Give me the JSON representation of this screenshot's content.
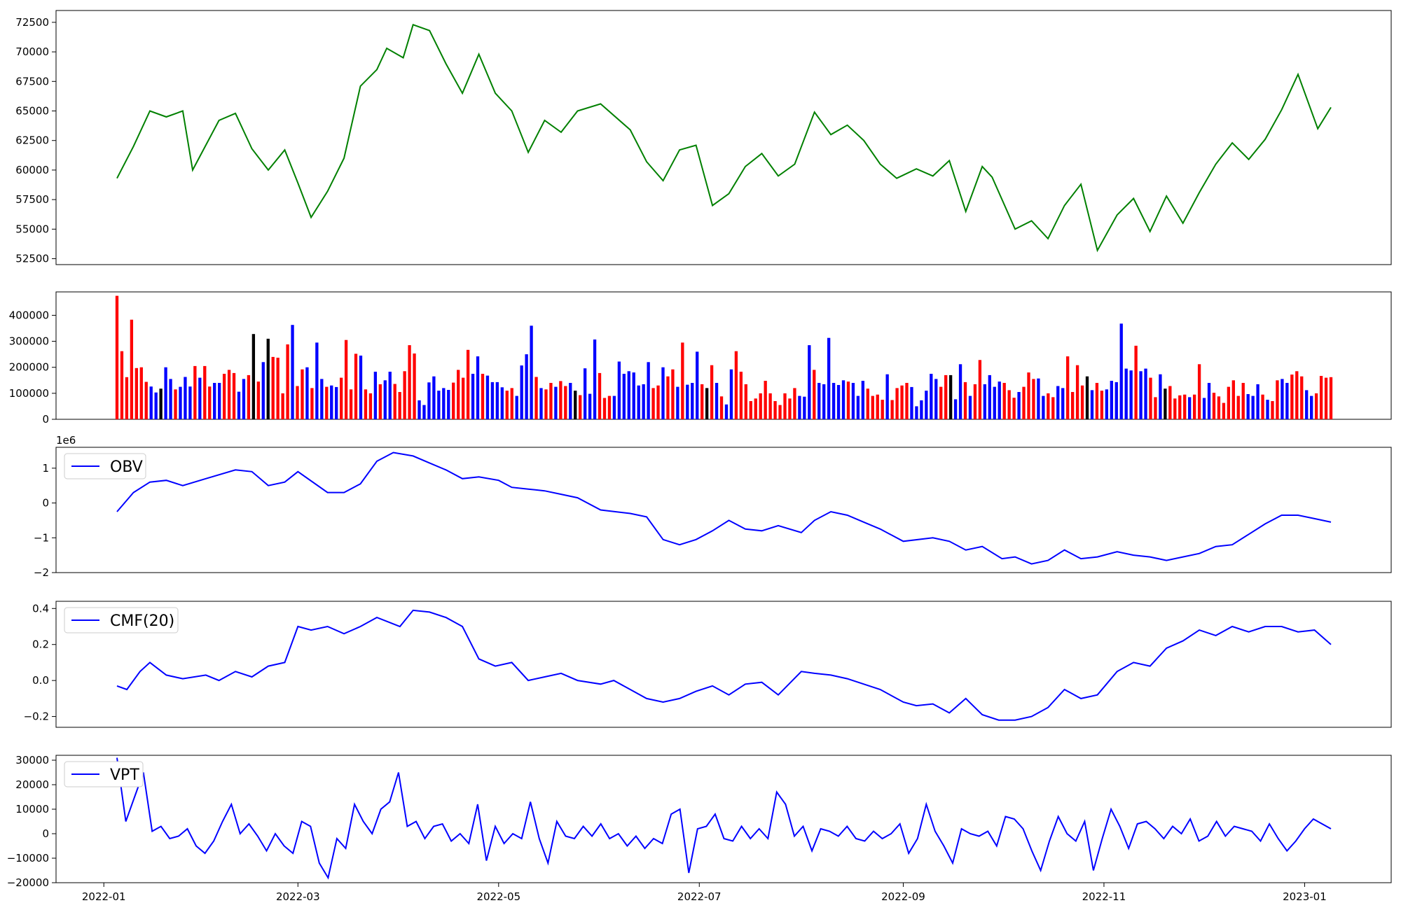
{
  "figure": {
    "background": "#ffffff",
    "x_axis": {
      "ticks": [
        "2022-01",
        "2022-03",
        "2022-05",
        "2022-07",
        "2022-09",
        "2022-11",
        "2023-01"
      ]
    }
  },
  "chart_data": [
    {
      "id": "price",
      "type": "line",
      "color": "#008000",
      "ylim": [
        52000,
        73500
      ],
      "yticks": [
        52500,
        55000,
        57500,
        60000,
        62500,
        65000,
        67500,
        70000,
        72500
      ],
      "x": [
        "2022-01-05",
        "2022-01-10",
        "2022-01-15",
        "2022-01-20",
        "2022-01-25",
        "2022-01-28",
        "2022-02-05",
        "2022-02-10",
        "2022-02-15",
        "2022-02-20",
        "2022-02-25",
        "2022-03-01",
        "2022-03-05",
        "2022-03-10",
        "2022-03-15",
        "2022-03-20",
        "2022-03-25",
        "2022-03-28",
        "2022-04-02",
        "2022-04-05",
        "2022-04-10",
        "2022-04-15",
        "2022-04-20",
        "2022-04-25",
        "2022-04-30",
        "2022-05-05",
        "2022-05-10",
        "2022-05-15",
        "2022-05-20",
        "2022-05-25",
        "2022-06-01",
        "2022-06-10",
        "2022-06-15",
        "2022-06-20",
        "2022-06-25",
        "2022-06-30",
        "2022-07-05",
        "2022-07-10",
        "2022-07-15",
        "2022-07-20",
        "2022-07-25",
        "2022-07-30",
        "2022-08-05",
        "2022-08-10",
        "2022-08-15",
        "2022-08-20",
        "2022-08-25",
        "2022-08-30",
        "2022-09-05",
        "2022-09-10",
        "2022-09-15",
        "2022-09-20",
        "2022-09-25",
        "2022-09-28",
        "2022-10-05",
        "2022-10-10",
        "2022-10-15",
        "2022-10-20",
        "2022-10-25",
        "2022-10-30",
        "2022-11-05",
        "2022-11-10",
        "2022-11-15",
        "2022-11-20",
        "2022-11-25",
        "2022-11-30",
        "2022-12-05",
        "2022-12-10",
        "2022-12-15",
        "2022-12-20",
        "2022-12-25",
        "2022-12-30",
        "2023-01-05",
        "2023-01-09"
      ],
      "values": [
        59300,
        62000,
        65000,
        64500,
        65000,
        60000,
        64200,
        64800,
        61800,
        60000,
        61700,
        58900,
        56000,
        58200,
        61000,
        67100,
        68500,
        70300,
        69500,
        72300,
        71800,
        69000,
        66500,
        69800,
        66500,
        65000,
        61500,
        64200,
        63200,
        65000,
        65600,
        63400,
        60700,
        59100,
        61700,
        62100,
        57000,
        58000,
        60300,
        61400,
        59500,
        60500,
        64900,
        63000,
        63800,
        62500,
        60500,
        59300,
        60100,
        59500,
        60800,
        56500,
        60300,
        59400,
        55000,
        55700,
        54200,
        57000,
        58800,
        53200,
        56200,
        57600,
        54800,
        57800,
        55500,
        58100,
        60500,
        62300,
        60900,
        62600,
        65100,
        68100,
        63500,
        65300
      ]
    },
    {
      "id": "volume",
      "type": "bar",
      "colors": {
        "up": "#ff0000",
        "down": "#0000ff",
        "flat": "#000000"
      },
      "ylim": [
        0,
        490000
      ],
      "yticks": [
        0,
        100000,
        200000,
        300000,
        400000
      ],
      "values": [
        475000,
        262000,
        162000,
        383000,
        197000,
        200000,
        144000,
        126000,
        103000,
        118000,
        200000,
        155000,
        115000,
        125000,
        163000,
        126000,
        205000,
        160000,
        205000,
        126000,
        140000,
        140000,
        175000,
        190000,
        178000,
        106000,
        155000,
        170000,
        328000,
        145000,
        220000,
        310000,
        240000,
        237000,
        100000,
        288000,
        363000,
        128000,
        192000,
        200000,
        120000,
        295000,
        155000,
        125000,
        130000,
        124000,
        160000,
        305000,
        115000,
        252000,
        245000,
        115000,
        100000,
        183000,
        135000,
        150000,
        183000,
        136000,
        105000,
        185000,
        285000,
        253000,
        73000,
        55000,
        142000,
        165000,
        110000,
        120000,
        113000,
        141000,
        190000,
        160000,
        267000,
        175000,
        242000,
        175000,
        168000,
        143000,
        143000,
        123000,
        110000,
        120000,
        90000,
        207000,
        250000,
        360000,
        163000,
        120000,
        115000,
        140000,
        125000,
        147000,
        128000,
        140000,
        110000,
        93000,
        196000,
        98000,
        307000,
        178000,
        82000,
        90000,
        90000,
        222000,
        175000,
        185000,
        180000,
        130000,
        135000,
        220000,
        120000,
        130000,
        200000,
        165000,
        192000,
        125000,
        295000,
        133000,
        140000,
        260000,
        135000,
        120000,
        208000,
        140000,
        88000,
        57000,
        192000,
        262000,
        183000,
        135000,
        70000,
        80000,
        100000,
        148000,
        100000,
        70000,
        55000,
        100000,
        80000,
        120000,
        90000,
        87000,
        285000,
        190000,
        140000,
        135000,
        313000,
        140000,
        132000,
        150000,
        145000,
        140000,
        90000,
        148000,
        118000,
        90000,
        95000,
        75000,
        173000,
        74000,
        120000,
        130000,
        140000,
        124000,
        50000,
        73000,
        110000,
        175000,
        155000,
        125000,
        170000,
        170000,
        77000,
        212000,
        143000,
        90000,
        135000,
        228000,
        135000,
        170000,
        125000,
        145000,
        140000,
        112000,
        83000,
        105000,
        125000,
        180000,
        155000,
        157000,
        90000,
        100000,
        85000,
        128000,
        120000,
        242000,
        105000,
        208000,
        130000,
        165000,
        112000,
        140000,
        110000,
        115000,
        148000,
        143000,
        368000,
        195000,
        188000,
        283000,
        185000,
        195000,
        160000,
        85000,
        173000,
        118000,
        128000,
        80000,
        92000,
        95000,
        85000,
        95000,
        212000,
        82000,
        140000,
        102000,
        88000,
        63000,
        125000,
        150000,
        90000,
        140000,
        97000,
        90000,
        135000,
        95000,
        75000,
        70000,
        150000,
        155000,
        140000,
        172000,
        185000,
        165000,
        112000,
        90000,
        100000,
        167000,
        160000,
        162000
      ],
      "bar_colors": "rrrrrrrbbfbbrbbbrbrrbbrrrbbrfrbfrrrrbrrbrbbrbbrrrrbrrbrbbrrrrrbbbbbbbrrrrbbrbbbbrrbbbbrbrrbrrbfrbbbrrrbbbbbbbbrrbrrbrbbbrfrbrbbrrrrrrrrrrrrrbbbrbbbbbbrbbbrrrrbrrrrbbbbbbrrfbbrbrrbbbbrrrbrrrbbrrbbrrrrfbrrbbbbbbrbbrrbfrrrrbrrbbrrrrrrrbbbrbrrbbrrrbbrrrrb"
    },
    {
      "id": "obv",
      "type": "line",
      "series": [
        {
          "name": "OBV",
          "color": "#0000ff"
        }
      ],
      "ylim": [
        -2.0,
        1.6
      ],
      "yticks": [
        -2,
        -1,
        0,
        1
      ],
      "ytick_labels": [
        "−2",
        "−1",
        "0",
        "1"
      ],
      "scale_note": "1e6",
      "x": [
        "2022-01-05",
        "2022-01-10",
        "2022-01-15",
        "2022-01-20",
        "2022-01-25",
        "2022-02-01",
        "2022-02-10",
        "2022-02-15",
        "2022-02-20",
        "2022-02-25",
        "2022-03-01",
        "2022-03-10",
        "2022-03-15",
        "2022-03-20",
        "2022-03-25",
        "2022-03-30",
        "2022-04-05",
        "2022-04-10",
        "2022-04-15",
        "2022-04-20",
        "2022-04-25",
        "2022-05-01",
        "2022-05-05",
        "2022-05-10",
        "2022-05-15",
        "2022-05-20",
        "2022-05-25",
        "2022-06-01",
        "2022-06-10",
        "2022-06-15",
        "2022-06-20",
        "2022-06-25",
        "2022-06-30",
        "2022-07-05",
        "2022-07-10",
        "2022-07-15",
        "2022-07-20",
        "2022-07-25",
        "2022-08-01",
        "2022-08-05",
        "2022-08-10",
        "2022-08-15",
        "2022-08-20",
        "2022-08-25",
        "2022-09-01",
        "2022-09-10",
        "2022-09-15",
        "2022-09-20",
        "2022-09-25",
        "2022-10-01",
        "2022-10-05",
        "2022-10-10",
        "2022-10-15",
        "2022-10-20",
        "2022-10-25",
        "2022-10-30",
        "2022-11-05",
        "2022-11-10",
        "2022-11-15",
        "2022-11-20",
        "2022-11-25",
        "2022-11-30",
        "2022-12-05",
        "2022-12-10",
        "2022-12-15",
        "2022-12-20",
        "2022-12-25",
        "2022-12-30",
        "2023-01-04",
        "2023-01-09"
      ],
      "values": [
        -0.25,
        0.3,
        0.6,
        0.65,
        0.5,
        0.7,
        0.95,
        0.9,
        0.5,
        0.6,
        0.9,
        0.3,
        0.3,
        0.55,
        1.2,
        1.45,
        1.35,
        1.15,
        0.95,
        0.7,
        0.75,
        0.65,
        0.45,
        0.4,
        0.35,
        0.25,
        0.15,
        -0.2,
        -0.3,
        -0.4,
        -1.05,
        -1.2,
        -1.05,
        -0.8,
        -0.5,
        -0.75,
        -0.8,
        -0.65,
        -0.85,
        -0.5,
        -0.25,
        -0.35,
        -0.55,
        -0.75,
        -1.1,
        -1.0,
        -1.1,
        -1.35,
        -1.25,
        -1.6,
        -1.55,
        -1.75,
        -1.65,
        -1.35,
        -1.6,
        -1.55,
        -1.4,
        -1.5,
        -1.55,
        -1.65,
        -1.55,
        -1.45,
        -1.25,
        -1.2,
        -0.9,
        -0.6,
        -0.35,
        -0.35,
        -0.45,
        -0.55
      ]
    },
    {
      "id": "cmf",
      "type": "line",
      "series": [
        {
          "name": "CMF(20)",
          "color": "#0000ff"
        }
      ],
      "ylim": [
        -0.26,
        0.44
      ],
      "yticks": [
        -0.2,
        0.0,
        0.2,
        0.4
      ],
      "ytick_labels": [
        "−0.2",
        "0.0",
        "0.2",
        "0.4"
      ],
      "x": [
        "2022-01-05",
        "2022-01-08",
        "2022-01-12",
        "2022-01-15",
        "2022-01-20",
        "2022-01-25",
        "2022-02-01",
        "2022-02-05",
        "2022-02-10",
        "2022-02-15",
        "2022-02-20",
        "2022-02-25",
        "2022-03-01",
        "2022-03-05",
        "2022-03-10",
        "2022-03-15",
        "2022-03-20",
        "2022-03-25",
        "2022-04-01",
        "2022-04-05",
        "2022-04-10",
        "2022-04-15",
        "2022-04-20",
        "2022-04-25",
        "2022-04-30",
        "2022-05-05",
        "2022-05-10",
        "2022-05-15",
        "2022-05-20",
        "2022-05-25",
        "2022-06-01",
        "2022-06-05",
        "2022-06-10",
        "2022-06-15",
        "2022-06-20",
        "2022-06-25",
        "2022-06-30",
        "2022-07-05",
        "2022-07-10",
        "2022-07-15",
        "2022-07-20",
        "2022-07-25",
        "2022-08-01",
        "2022-08-05",
        "2022-08-10",
        "2022-08-15",
        "2022-08-20",
        "2022-08-25",
        "2022-09-01",
        "2022-09-05",
        "2022-09-10",
        "2022-09-15",
        "2022-09-20",
        "2022-09-25",
        "2022-09-30",
        "2022-10-05",
        "2022-10-10",
        "2022-10-15",
        "2022-10-20",
        "2022-10-25",
        "2022-10-30",
        "2022-11-05",
        "2022-11-10",
        "2022-11-15",
        "2022-11-20",
        "2022-11-25",
        "2022-11-30",
        "2022-12-05",
        "2022-12-10",
        "2022-12-15",
        "2022-12-20",
        "2022-12-25",
        "2022-12-30",
        "2023-01-04",
        "2023-01-09"
      ],
      "values": [
        -0.03,
        -0.05,
        0.05,
        0.1,
        0.03,
        0.01,
        0.03,
        0.0,
        0.05,
        0.02,
        0.08,
        0.1,
        0.3,
        0.28,
        0.3,
        0.26,
        0.3,
        0.35,
        0.3,
        0.39,
        0.38,
        0.35,
        0.3,
        0.12,
        0.08,
        0.1,
        0.0,
        0.02,
        0.04,
        0.0,
        -0.02,
        0.0,
        -0.05,
        -0.1,
        -0.12,
        -0.1,
        -0.06,
        -0.03,
        -0.08,
        -0.02,
        -0.01,
        -0.08,
        0.05,
        0.04,
        0.03,
        0.01,
        -0.02,
        -0.05,
        -0.12,
        -0.14,
        -0.13,
        -0.18,
        -0.1,
        -0.19,
        -0.22,
        -0.22,
        -0.2,
        -0.15,
        -0.05,
        -0.1,
        -0.08,
        0.05,
        0.1,
        0.08,
        0.18,
        0.22,
        0.28,
        0.25,
        0.3,
        0.27,
        0.3,
        0.3,
        0.27,
        0.28,
        0.2
      ]
    },
    {
      "id": "vpt",
      "type": "line",
      "series": [
        {
          "name": "VPT",
          "color": "#0000ff"
        }
      ],
      "ylim": [
        -20000,
        32000
      ],
      "yticks": [
        -20000,
        -10000,
        0,
        10000,
        20000,
        30000
      ],
      "ytick_labels": [
        "−20000",
        "−10000",
        "0",
        "10000",
        "20000",
        "30000"
      ],
      "values": [
        31000,
        5000,
        15000,
        25000,
        1000,
        3000,
        -2000,
        -1000,
        2000,
        -5000,
        -8000,
        -3000,
        5000,
        12000,
        0,
        4000,
        -1000,
        -7000,
        0,
        -5000,
        -8000,
        5000,
        3000,
        -12000,
        -18000,
        -2000,
        -6000,
        12000,
        5000,
        0,
        10000,
        13000,
        25000,
        3000,
        5000,
        -2000,
        3000,
        4000,
        -3000,
        0,
        -4000,
        12000,
        -11000,
        3000,
        -4000,
        0,
        -2000,
        13000,
        -2000,
        -12000,
        5000,
        -1000,
        -2000,
        3000,
        -1000,
        4000,
        -2000,
        0,
        -5000,
        -1000,
        -6000,
        -2000,
        -4000,
        8000,
        10000,
        -16000,
        2000,
        3000,
        8000,
        -2000,
        -3000,
        3000,
        -2000,
        2000,
        -2000,
        17000,
        12000,
        -1000,
        3000,
        -7000,
        2000,
        1000,
        -1000,
        3000,
        -2000,
        -3000,
        1000,
        -2000,
        0,
        4000,
        -8000,
        -2000,
        12000,
        1000,
        -5000,
        -12000,
        2000,
        0,
        -1000,
        1000,
        -5000,
        7000,
        6000,
        2000,
        -7000,
        -15000,
        -3000,
        7000,
        0,
        -3000,
        5000,
        -15000,
        -2000,
        10000,
        3000,
        -6000,
        4000,
        5000,
        2000,
        -2000,
        3000,
        0,
        6000,
        -3000,
        -1000,
        5000,
        -1000,
        3000,
        2000,
        1000,
        -3000,
        4000,
        -2000,
        -7000,
        -3000,
        2000,
        6000,
        4000,
        2000
      ]
    }
  ]
}
